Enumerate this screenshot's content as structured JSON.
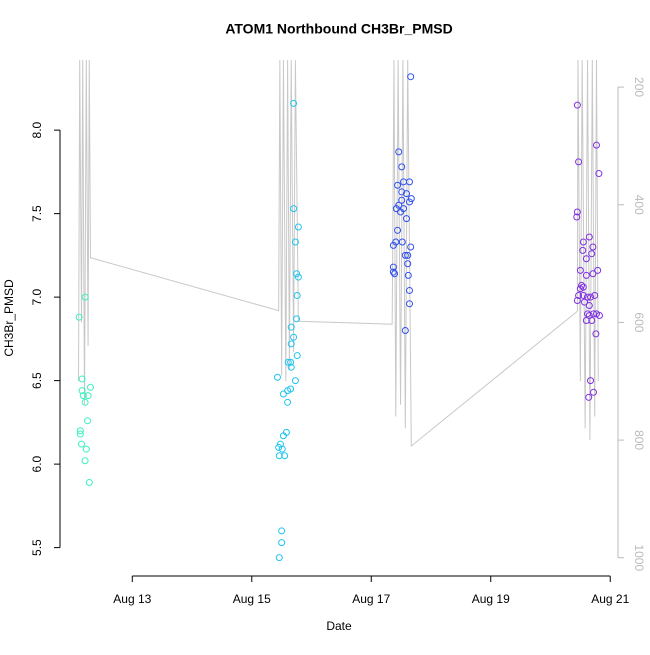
{
  "chart_data": {
    "type": "scatter",
    "title": "ATOM1 Northbound CH3Br_PMSD",
    "x_label": "Date",
    "y_label": "CH3Br_PMSD",
    "xlim": [
      11.79,
      21.13
    ],
    "xticks": [
      {
        "value": 13,
        "label": "Aug 13"
      },
      {
        "value": 15,
        "label": "Aug 15"
      },
      {
        "value": 17,
        "label": "Aug 17"
      },
      {
        "value": 19,
        "label": "Aug 19"
      },
      {
        "value": 21,
        "label": "Aug 21"
      }
    ],
    "ylim": [
      5.33,
      8.42
    ],
    "yticks": [
      {
        "value": 5.5,
        "label": "5.5"
      },
      {
        "value": 6,
        "label": "6.0"
      },
      {
        "value": 6.5,
        "label": "6.5"
      },
      {
        "value": 7,
        "label": "7.0"
      },
      {
        "value": 7.5,
        "label": "7.5"
      },
      {
        "value": 8,
        "label": "8.0"
      }
    ],
    "y2lim": [
      1031,
      154
    ],
    "y2ticks": [
      200,
      400,
      600,
      800,
      1000
    ],
    "y2color": "#bbbbbb",
    "series": [
      {
        "color": "#3cf0c0",
        "x": [
          12.11,
          12.21,
          12.16,
          12.16,
          12.18,
          12.21,
          12.3,
          12.26,
          12.25,
          12.13,
          12.13,
          12.15,
          12.23,
          12.21,
          12.28
        ],
        "values": [
          6.88,
          7.0,
          6.51,
          6.44,
          6.41,
          6.37,
          6.46,
          6.41,
          6.26,
          6.2,
          6.18,
          6.12,
          6.09,
          6.02,
          5.89
        ]
      },
      {
        "color": "#20c4f0",
        "x": [
          15.7,
          15.7,
          15.78,
          15.73,
          15.75,
          15.78,
          15.76,
          15.75,
          15.66,
          15.7,
          15.66,
          15.76,
          15.61,
          15.65,
          15.66,
          15.73,
          15.43,
          15.65,
          15.6,
          15.53,
          15.6,
          15.58,
          15.53,
          15.48,
          15.45,
          15.51,
          15.46,
          15.55,
          15.5,
          15.5,
          15.46
        ],
        "values": [
          8.16,
          7.53,
          7.42,
          7.33,
          7.14,
          7.12,
          7.01,
          6.87,
          6.82,
          6.76,
          6.72,
          6.65,
          6.61,
          6.61,
          6.58,
          6.5,
          6.52,
          6.45,
          6.44,
          6.42,
          6.37,
          6.19,
          6.17,
          6.12,
          6.1,
          6.09,
          6.05,
          6.05,
          5.6,
          5.53,
          5.44
        ]
      },
      {
        "color": "#3050f0",
        "x": [
          17.66,
          17.46,
          17.51,
          17.54,
          17.64,
          17.44,
          17.51,
          17.59,
          17.51,
          17.67,
          17.64,
          17.46,
          17.42,
          17.54,
          17.49,
          17.59,
          17.44,
          17.41,
          17.52,
          17.37,
          17.66,
          17.57,
          17.61,
          17.61,
          17.37,
          17.37,
          17.39,
          17.62,
          17.64,
          17.64,
          17.57
        ],
        "values": [
          8.32,
          7.87,
          7.78,
          7.69,
          7.69,
          7.67,
          7.63,
          7.62,
          7.58,
          7.59,
          7.57,
          7.55,
          7.53,
          7.53,
          7.51,
          7.47,
          7.4,
          7.33,
          7.33,
          7.31,
          7.3,
          7.25,
          7.25,
          7.2,
          7.18,
          7.15,
          7.14,
          7.13,
          7.04,
          6.96,
          6.8
        ]
      },
      {
        "color": "#8030e0",
        "x": [
          20.45,
          20.47,
          20.77,
          20.81,
          20.45,
          20.44,
          20.55,
          20.65,
          20.54,
          20.71,
          20.69,
          20.6,
          20.79,
          20.71,
          20.5,
          20.6,
          20.52,
          20.55,
          20.5,
          20.47,
          20.55,
          20.74,
          20.62,
          20.67,
          20.57,
          20.45,
          20.65,
          20.72,
          20.77,
          20.62,
          20.82,
          20.65,
          20.6,
          20.69,
          20.76,
          20.67,
          20.72,
          20.64
        ],
        "values": [
          8.15,
          7.81,
          7.91,
          7.74,
          7.51,
          7.48,
          7.33,
          7.36,
          7.28,
          7.3,
          7.26,
          7.23,
          7.16,
          7.14,
          7.16,
          7.13,
          7.07,
          7.06,
          7.05,
          7.01,
          7.01,
          7.01,
          7.0,
          7.0,
          6.97,
          6.98,
          6.95,
          6.9,
          6.9,
          6.9,
          6.89,
          6.89,
          6.86,
          6.86,
          6.78,
          6.5,
          6.43,
          6.4
        ]
      },
      {
        "type": "line",
        "axis": "y2",
        "color": "#c8c8c8",
        "x": [
          12.1,
          12.12,
          12.15,
          12.17,
          12.2,
          12.23,
          12.26,
          12.28,
          12.3,
          15.45,
          15.47,
          15.5,
          15.53,
          15.57,
          15.6,
          15.63,
          15.66,
          15.7,
          15.73,
          15.78,
          17.35,
          17.38,
          17.41,
          17.45,
          17.49,
          17.53,
          17.57,
          17.61,
          17.67,
          20.45,
          20.46,
          20.5,
          20.53,
          20.58,
          20.62,
          20.66,
          20.7,
          20.74,
          20.77,
          20.8
        ],
        "values": [
          700,
          154,
          600,
          154,
          740,
          154,
          640,
          154,
          490,
          580,
          154,
          690,
          154,
          700,
          154,
          680,
          154,
          650,
          154,
          598,
          603,
          154,
          760,
          154,
          740,
          154,
          780,
          154,
          810,
          581,
          154,
          700,
          154,
          780,
          154,
          800,
          154,
          760,
          154,
          700
        ]
      }
    ]
  }
}
